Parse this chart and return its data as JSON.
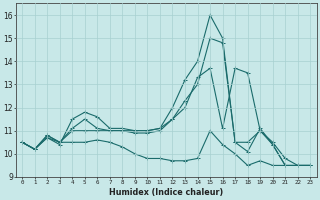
{
  "xlabel": "Humidex (Indice chaleur)",
  "background_color": "#c8e8e8",
  "grid_color": "#a8d0d0",
  "line_color": "#1a6b6b",
  "ylim": [
    9,
    16.5
  ],
  "yticks": [
    9,
    10,
    11,
    12,
    13,
    14,
    15,
    16
  ],
  "xlim": [
    -0.5,
    23.5
  ],
  "x_ticks": [
    0,
    1,
    2,
    3,
    4,
    5,
    6,
    7,
    8,
    9,
    10,
    11,
    12,
    13,
    14,
    15,
    16,
    17,
    18,
    19,
    20,
    21,
    22,
    23
  ],
  "series": [
    {
      "x": [
        0,
        1,
        2,
        3,
        4,
        5,
        6,
        7,
        8,
        9,
        10,
        11,
        12,
        13,
        14,
        15,
        16,
        17,
        18,
        19,
        20,
        21,
        22,
        23
      ],
      "y": [
        10.5,
        10.2,
        10.7,
        10.4,
        11.5,
        11.8,
        11.6,
        11.1,
        11.1,
        11.0,
        11.0,
        11.1,
        12.0,
        13.2,
        14.0,
        16.0,
        15.0,
        10.5,
        10.5,
        11.0,
        10.5,
        9.8,
        9.5,
        9.5
      ]
    },
    {
      "x": [
        0,
        1,
        2,
        3,
        4,
        5,
        6,
        7,
        8,
        9,
        10,
        11,
        12,
        13,
        14,
        15,
        16,
        17,
        18,
        19,
        20,
        21,
        22,
        23
      ],
      "y": [
        10.5,
        10.2,
        10.8,
        10.5,
        10.5,
        10.5,
        10.6,
        10.5,
        10.3,
        10.0,
        9.8,
        9.8,
        9.7,
        9.7,
        9.8,
        11.0,
        10.4,
        10.0,
        9.5,
        9.7,
        9.5,
        9.5,
        9.5,
        9.5
      ]
    },
    {
      "x": [
        0,
        1,
        2,
        3,
        4,
        5,
        6,
        7,
        8,
        9,
        10,
        11,
        12,
        13,
        14,
        15,
        16,
        17,
        18,
        19,
        20,
        21,
        22,
        23
      ],
      "y": [
        10.5,
        10.2,
        10.7,
        10.5,
        11.1,
        11.5,
        11.1,
        11.0,
        11.0,
        10.9,
        10.9,
        11.0,
        11.5,
        12.3,
        13.0,
        15.0,
        14.8,
        10.5,
        10.1,
        11.1,
        10.4,
        9.5,
        9.5,
        9.5
      ]
    },
    {
      "x": [
        0,
        1,
        2,
        3,
        4,
        5,
        6,
        7,
        8,
        9,
        10,
        11,
        12,
        13,
        14,
        15,
        16,
        17,
        18,
        19,
        20,
        21
      ],
      "y": [
        10.5,
        10.2,
        10.8,
        10.5,
        11.0,
        11.0,
        11.0,
        11.0,
        11.0,
        11.0,
        11.0,
        11.1,
        11.5,
        12.0,
        13.3,
        13.7,
        11.1,
        13.7,
        13.5,
        11.0,
        10.4,
        9.5
      ]
    }
  ]
}
